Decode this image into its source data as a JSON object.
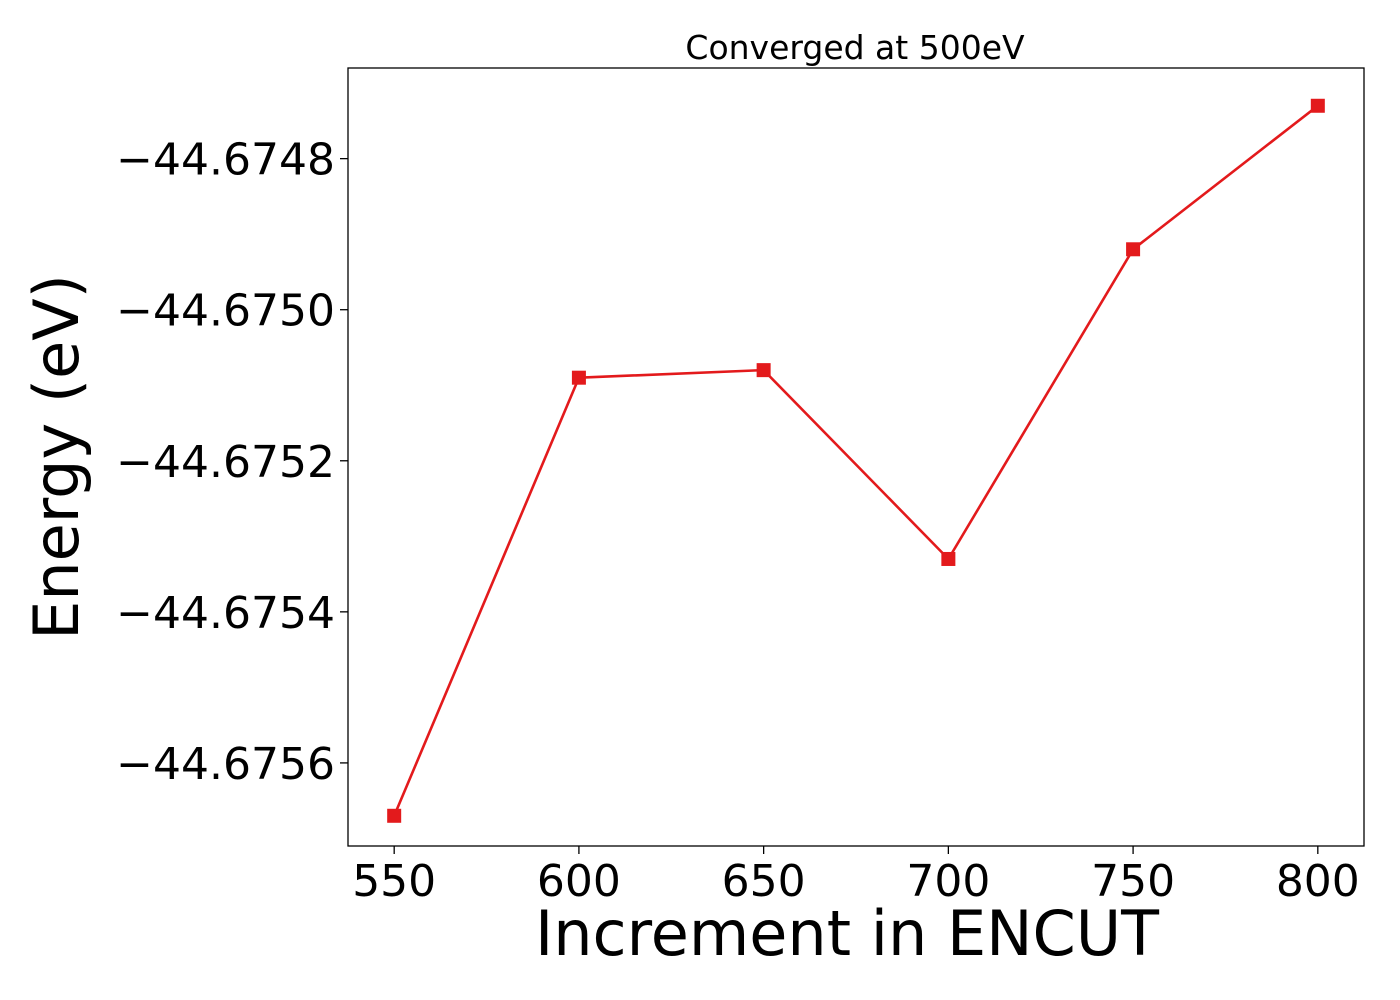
{
  "chart_data": {
    "type": "line",
    "title": "Converged at 500eV",
    "xlabel": "Increment in ENCUT",
    "ylabel": "Energy (eV)",
    "x": [
      550,
      600,
      650,
      700,
      750,
      800
    ],
    "xticks": [
      550,
      600,
      650,
      700,
      750,
      800
    ],
    "xtick_labels": [
      "550",
      "600",
      "650",
      "700",
      "750",
      "800"
    ],
    "yticks": [
      -44.6748,
      -44.675,
      -44.6752,
      -44.6754,
      -44.6756
    ],
    "ytick_labels": [
      "−44.6748",
      "−44.6750",
      "−44.6752",
      "−44.6754",
      "−44.6756"
    ],
    "xlim": [
      537.5,
      812.5
    ],
    "ylim": [
      -44.67571,
      -44.67468
    ],
    "grid": false,
    "series": [
      {
        "color": "#e31a1c",
        "marker": "square",
        "values": [
          -44.67567,
          -44.67509,
          -44.67508,
          -44.67533,
          -44.67492,
          -44.67473
        ]
      }
    ]
  }
}
